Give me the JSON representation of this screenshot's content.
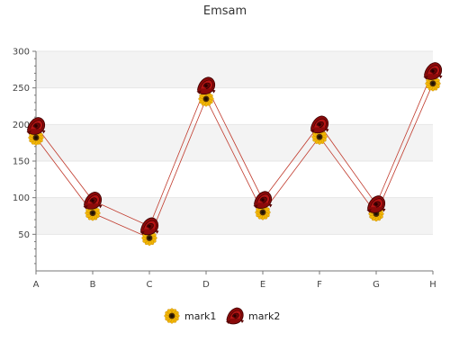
{
  "chart_data": {
    "type": "line",
    "title": "Emsam",
    "categories": [
      "A",
      "B",
      "C",
      "D",
      "E",
      "F",
      "G",
      "H"
    ],
    "y_ticks": [
      50,
      100,
      150,
      200,
      250,
      300
    ],
    "ylim": [
      0,
      300
    ],
    "grid": true,
    "legend_position": "bottom-center",
    "series": [
      {
        "name": "mark1",
        "values": [
          182,
          79,
          45,
          235,
          80,
          183,
          78,
          256
        ],
        "marker_icon": "sunflower-icon",
        "line_color": "#c0392b"
      },
      {
        "name": "mark2",
        "values": [
          198,
          96,
          61,
          253,
          97,
          200,
          91,
          273
        ],
        "marker_icon": "rose-icon",
        "line_color": "#c0392b"
      }
    ],
    "band_color": "#f3f3f3",
    "grid_color": "#e6e6e6"
  }
}
